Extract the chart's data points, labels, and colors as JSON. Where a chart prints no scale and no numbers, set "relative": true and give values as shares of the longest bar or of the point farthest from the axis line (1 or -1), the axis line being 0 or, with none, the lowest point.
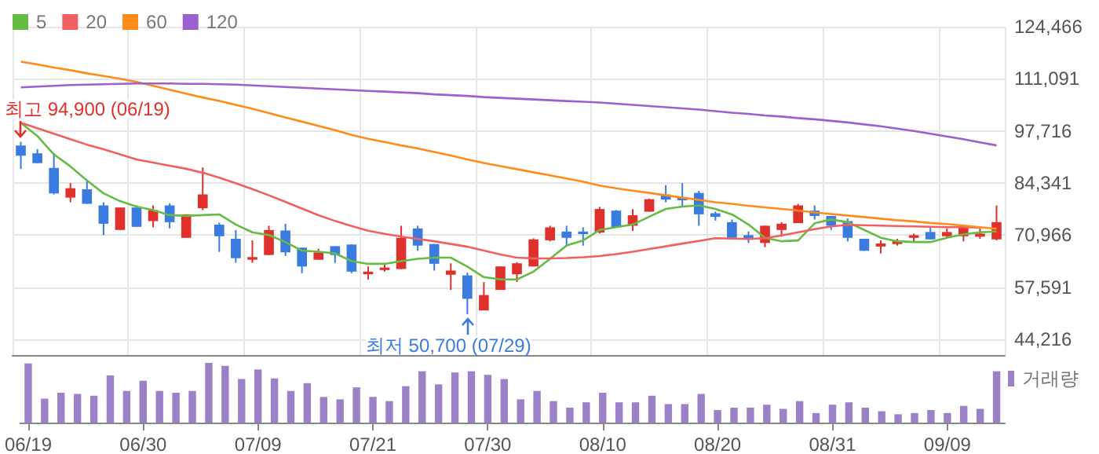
{
  "chart_data": [
    {
      "type": "candlestick",
      "categories": [
        null,
        null,
        null,
        null,
        null,
        null,
        null,
        null,
        null,
        null,
        null,
        null,
        null,
        null,
        null,
        null,
        null,
        null,
        null,
        null,
        null,
        null,
        null,
        null,
        null,
        null,
        null,
        null,
        null,
        null,
        null,
        null,
        null,
        null,
        null,
        null,
        null,
        null,
        null,
        null,
        null,
        null,
        null,
        null,
        null,
        null,
        null,
        null,
        null,
        null,
        null,
        null,
        null,
        null,
        null,
        null,
        null,
        null,
        null,
        null
      ],
      "ohlc": [
        [
          94000,
          94900,
          87950,
          91330
        ],
        [
          91970,
          93050,
          89440,
          89440
        ],
        [
          88230,
          91970,
          81420,
          81690
        ],
        [
          80600,
          84340,
          79400,
          83010
        ],
        [
          82730,
          85020,
          79000,
          79000
        ],
        [
          78600,
          79400,
          70970,
          73900
        ],
        [
          72300,
          78070,
          72300,
          78070
        ],
        [
          78070,
          78600,
          73100,
          73100
        ],
        [
          74580,
          78600,
          72970,
          77390
        ],
        [
          78600,
          79120,
          72690,
          74300
        ],
        [
          70280,
          76310,
          70280,
          76310
        ],
        [
          77910,
          88360,
          77390,
          81410
        ],
        [
          73660,
          74180,
          66670,
          70690
        ],
        [
          70040,
          72290,
          63860,
          65060
        ],
        [
          64660,
          69640,
          63860,
          65340
        ],
        [
          65870,
          73380,
          65870,
          72290
        ],
        [
          72170,
          73900,
          65620,
          66550
        ],
        [
          67750,
          67750,
          61210,
          62930
        ],
        [
          64660,
          67470,
          64660,
          66550
        ],
        [
          68150,
          68150,
          63860,
          65870
        ],
        [
          68560,
          68560,
          61210,
          61610
        ],
        [
          60930,
          62930,
          59600,
          61610
        ],
        [
          62010,
          63620,
          61610,
          62650
        ],
        [
          62250,
          73380,
          62250,
          70280
        ],
        [
          72690,
          73380,
          66950,
          68280
        ],
        [
          68690,
          68690,
          61880,
          63620
        ],
        [
          60810,
          63740,
          56910,
          61880
        ],
        [
          60640,
          61340,
          50700,
          54630
        ],
        [
          51650,
          58920,
          51650,
          55590
        ],
        [
          56910,
          62930,
          56910,
          62930
        ],
        [
          60930,
          64020,
          58920,
          63740
        ],
        [
          62930,
          70160,
          62930,
          69880
        ],
        [
          69640,
          73380,
          69360,
          72970
        ],
        [
          71890,
          73380,
          68040,
          70280
        ],
        [
          71890,
          72970,
          68280,
          71240
        ],
        [
          71640,
          78200,
          71370,
          77670
        ],
        [
          77270,
          77390,
          72970,
          72970
        ],
        [
          73380,
          77670,
          72050,
          76070
        ],
        [
          76990,
          80330,
          76990,
          80200
        ],
        [
          81410,
          83820,
          79400,
          80090
        ],
        [
          80600,
          84340,
          78070,
          79920
        ],
        [
          81810,
          82330,
          73380,
          76310
        ],
        [
          76590,
          76990,
          74700,
          75660
        ],
        [
          74300,
          74980,
          70280,
          70280
        ],
        [
          70966,
          71890,
          68960,
          69880
        ],
        [
          68960,
          73380,
          67870,
          73380
        ],
        [
          72290,
          74300,
          70560,
          73900
        ],
        [
          74050,
          79000,
          74050,
          78600
        ],
        [
          77270,
          78600,
          74980,
          75900
        ],
        [
          75900,
          75900,
          72290,
          73380
        ],
        [
          74580,
          75260,
          69360,
          70280
        ],
        [
          70040,
          70040,
          66950,
          66950
        ],
        [
          68040,
          69640,
          66270,
          68830
        ],
        [
          68680,
          70040,
          68280,
          69480
        ],
        [
          70280,
          71370,
          69360,
          70966
        ],
        [
          71770,
          73250,
          69880,
          69880
        ],
        [
          70690,
          72690,
          70280,
          71770
        ],
        [
          70690,
          73380,
          69360,
          72850
        ],
        [
          70560,
          72690,
          70040,
          71370
        ],
        [
          69880,
          78600,
          69640,
          74300
        ]
      ],
      "colors": [
        "#3a7be0",
        "#3a7be0",
        "#3a7be0",
        "#e0302c",
        "#3a7be0",
        "#3a7be0",
        "#e0302c",
        "#3a7be0",
        "#e0302c",
        "#3a7be0",
        "#e0302c",
        "#e0302c",
        "#3a7be0",
        "#3a7be0",
        "#e0302c",
        "#e0302c",
        "#3a7be0",
        "#3a7be0",
        "#e0302c",
        "#3a7be0",
        "#3a7be0",
        "#e0302c",
        "#e0302c",
        "#e0302c",
        "#3a7be0",
        "#3a7be0",
        "#e0302c",
        "#3a7be0",
        "#e0302c",
        "#e0302c",
        "#e0302c",
        "#e0302c",
        "#e0302c",
        "#3a7be0",
        "#3a7be0",
        "#e0302c",
        "#3a7be0",
        "#e0302c",
        "#e0302c",
        "#3a7be0",
        "#3a7be0",
        "#3a7be0",
        "#3a7be0",
        "#3a7be0",
        "#3a7be0",
        "#e0302c",
        "#e0302c",
        "#e0302c",
        "#3a7be0",
        "#3a7be0",
        "#3a7be0",
        "#3a7be0",
        "#e0302c",
        "#e0302c",
        "#e0302c",
        "#3a7be0",
        "#e0302c",
        "#e0302c",
        "#e0302c",
        "#e0302c"
      ],
      "series": [
        {
          "type": "line",
          "name": "5",
          "color": "#66bb44",
          "values": [
            99800,
            96400,
            91700,
            88600,
            85000,
            81700,
            79700,
            78300,
            77400,
            76100,
            75900,
            76100,
            76300,
            73700,
            71700,
            71000,
            69200,
            67000,
            66700,
            66300,
            64300,
            63600,
            63600,
            64300,
            64900,
            65200,
            65200,
            62900,
            60200,
            59600,
            59600,
            61600,
            64900,
            68300,
            69600,
            72300,
            73000,
            73700,
            75700,
            77700,
            78300,
            78600,
            77700,
            76300,
            73700,
            70300,
            69400,
            69600,
            74000,
            75000,
            74300,
            72300,
            70300,
            69400,
            69200,
            69200,
            70300,
            71200,
            71700,
            71900
          ]
        },
        {
          "type": "line",
          "name": "20",
          "color": "#f06060",
          "values": [
            99800,
            98400,
            97000,
            95600,
            94200,
            93000,
            91700,
            90400,
            89600,
            88800,
            88000,
            87000,
            85700,
            84300,
            82800,
            81200,
            79500,
            77800,
            76100,
            74600,
            73300,
            72100,
            71300,
            70600,
            70000,
            69400,
            68700,
            68000,
            67000,
            66000,
            65200,
            65000,
            65000,
            65100,
            65300,
            65600,
            66100,
            66700,
            67400,
            68100,
            68800,
            69500,
            70200,
            70100,
            70000,
            70200,
            70900,
            71700,
            72500,
            73200,
            73600,
            73500,
            73400,
            73300,
            73200,
            73100,
            73000,
            73000,
            72900,
            null
          ]
        },
        {
          "type": "line",
          "name": "60",
          "color": "#ff8c1a",
          "values": [
            115500,
            114800,
            114000,
            113300,
            112500,
            111800,
            111100,
            110300,
            109300,
            108300,
            107300,
            106300,
            105400,
            104400,
            103400,
            102300,
            101200,
            100100,
            99000,
            97900,
            96700,
            95700,
            94900,
            94000,
            93200,
            92300,
            91400,
            90400,
            89500,
            88700,
            87900,
            87100,
            86300,
            85500,
            84700,
            83700,
            83000,
            82400,
            81800,
            81200,
            80600,
            80000,
            79400,
            79000,
            78500,
            78100,
            77700,
            77300,
            76800,
            76400,
            76000,
            75600,
            75200,
            74800,
            74500,
            74100,
            73800,
            73400,
            73000,
            72600
          ]
        },
        {
          "type": "line",
          "name": "120",
          "color": "#9b5fd0",
          "values": [
            108900,
            109100,
            109300,
            109500,
            109600,
            109700,
            109800,
            109900,
            109900,
            109900,
            109800,
            109800,
            109700,
            109600,
            109400,
            109200,
            109000,
            108800,
            108600,
            108400,
            108200,
            108000,
            107800,
            107600,
            107400,
            107100,
            106900,
            106700,
            106400,
            106200,
            106000,
            105800,
            105600,
            105400,
            105200,
            105000,
            104700,
            104400,
            104100,
            103800,
            103500,
            103200,
            102800,
            102400,
            102100,
            101700,
            101400,
            101000,
            100700,
            100300,
            99900,
            99400,
            98900,
            98300,
            97700,
            97000,
            96300,
            95600,
            94800,
            94000
          ]
        }
      ],
      "ylim": [
        40200,
        124466
      ],
      "yticks": [
        {
          "value": 44216,
          "label": "44,216"
        },
        {
          "value": 57591,
          "label": "57,591"
        },
        {
          "value": 70966,
          "label": "70,966"
        },
        {
          "value": 84341,
          "label": "84,341"
        },
        {
          "value": 97716,
          "label": "97,716"
        },
        {
          "value": 111091,
          "label": "111,091"
        },
        {
          "value": 124466,
          "label": "124,466"
        }
      ],
      "grid": true,
      "legend": "top left",
      "tick_labels": "y",
      "marker": "none",
      "annotations": [
        "최고 94,900 (06/19)",
        "최저 50,700 (07/29)"
      ]
    },
    {
      "type": "bar",
      "relative": true,
      "categories": [
        "06/19",
        null,
        null,
        null,
        null,
        null,
        null,
        "06/30",
        null,
        null,
        null,
        null,
        null,
        null,
        "07/09",
        null,
        null,
        null,
        null,
        null,
        null,
        "07/21",
        null,
        null,
        null,
        null,
        null,
        null,
        "07/30",
        null,
        null,
        null,
        null,
        null,
        null,
        "08/10",
        null,
        null,
        null,
        null,
        null,
        null,
        "08/20",
        null,
        null,
        null,
        null,
        null,
        null,
        "08/31",
        null,
        null,
        null,
        null,
        null,
        null,
        "09/09",
        null,
        null,
        null
      ],
      "series": [
        {
          "name": "거래량",
          "color": "#9b82c8",
          "values": [
            0.99,
            0.4,
            0.5,
            0.48,
            0.45,
            0.79,
            0.53,
            0.7,
            0.53,
            0.5,
            0.53,
            1,
            0.95,
            0.73,
            0.89,
            0.74,
            0.53,
            0.66,
            0.43,
            0.39,
            0.59,
            0.43,
            0.36,
            0.61,
            0.86,
            0.64,
            0.84,
            0.86,
            0.8,
            0.73,
            0.39,
            0.53,
            0.36,
            0.25,
            0.34,
            0.5,
            0.34,
            0.34,
            0.45,
            0.31,
            0.31,
            0.48,
            0.21,
            0.25,
            0.25,
            0.3,
            0.23,
            0.36,
            0.16,
            0.3,
            0.34,
            0.25,
            0.19,
            0.14,
            0.16,
            0.21,
            0.16,
            0.28,
            0.23,
            0.86
          ]
        }
      ],
      "legend": "top right",
      "tick_labels": "x"
    }
  ]
}
